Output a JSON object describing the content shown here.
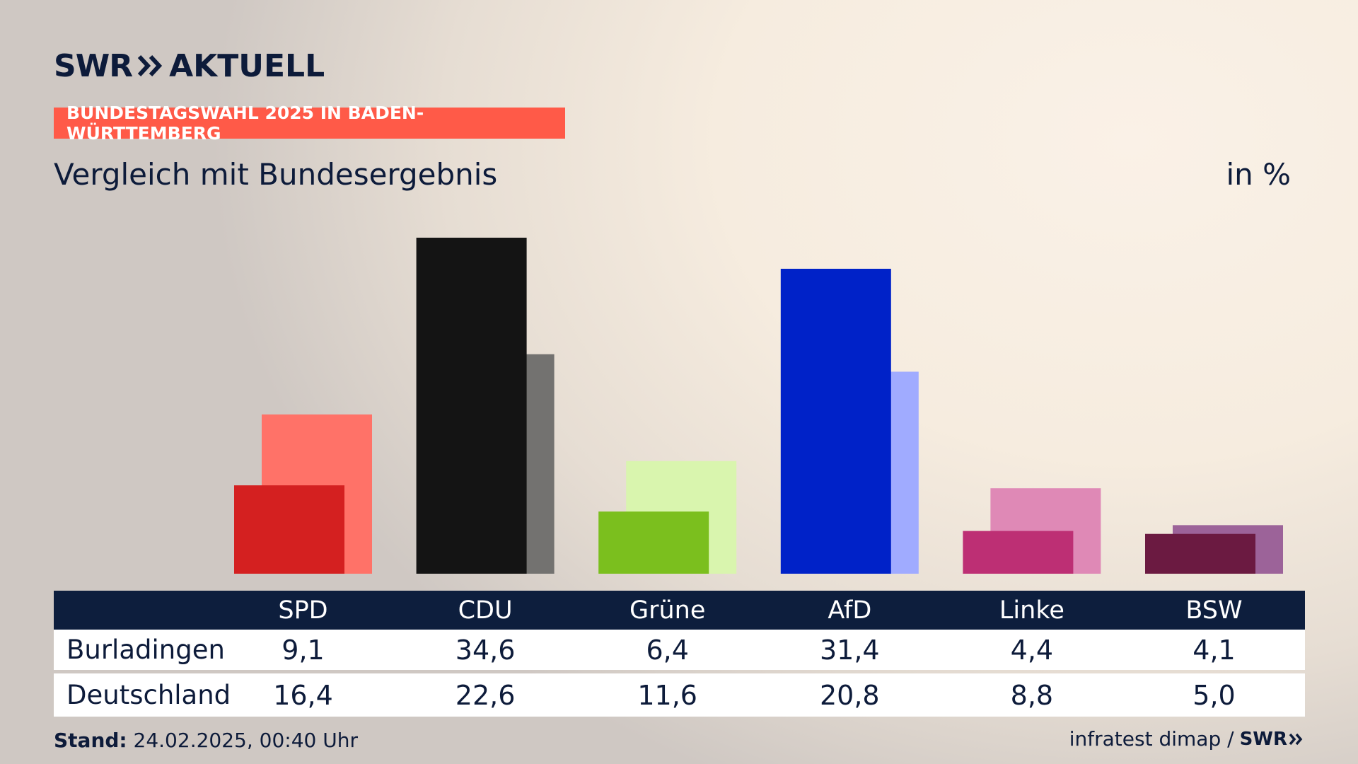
{
  "header": {
    "logo_left": "SWR",
    "logo_right": "AKTUELL",
    "tag": "BUNDESTAGSWAHL 2025 IN BADEN-WÜRTTEMBERG",
    "subtitle": "Vergleich mit Bundesergebnis",
    "unit": "in %"
  },
  "colors": {
    "background": "#f6ecdf",
    "tag_bg": "#ff5a48",
    "table_header_bg": "#0d1e3d",
    "text": "#0d1b3a"
  },
  "chart_data": {
    "type": "bar",
    "categories": [
      "SPD",
      "CDU",
      "Grüne",
      "AfD",
      "Linke",
      "BSW"
    ],
    "series": [
      {
        "name": "Burladingen",
        "values": [
          9.1,
          34.6,
          6.4,
          31.4,
          4.4,
          4.1
        ],
        "colors": [
          "#d42020",
          "#141414",
          "#7bbf1e",
          "#0022c8",
          "#bd2f74",
          "#6b1a41"
        ]
      },
      {
        "name": "Deutschland",
        "values": [
          16.4,
          22.6,
          11.6,
          20.8,
          8.8,
          5.0
        ],
        "colors": [
          "#ff7268",
          "#737270",
          "#d9f5ae",
          "#a0abff",
          "#df89b6",
          "#9c6399"
        ]
      }
    ],
    "ylim": [
      0,
      34.6
    ]
  },
  "table": {
    "rows": [
      {
        "label": "Burladingen",
        "values": [
          "9,1",
          "34,6",
          "6,4",
          "31,4",
          "4,4",
          "4,1"
        ]
      },
      {
        "label": "Deutschland",
        "values": [
          "16,4",
          "22,6",
          "11,6",
          "20,8",
          "8,8",
          "5,0"
        ]
      }
    ]
  },
  "footer": {
    "stand_label": "Stand:",
    "stand_value": "24.02.2025, 00:40 Uhr",
    "source": "infratest dimap /",
    "source_logo": "SWR"
  }
}
